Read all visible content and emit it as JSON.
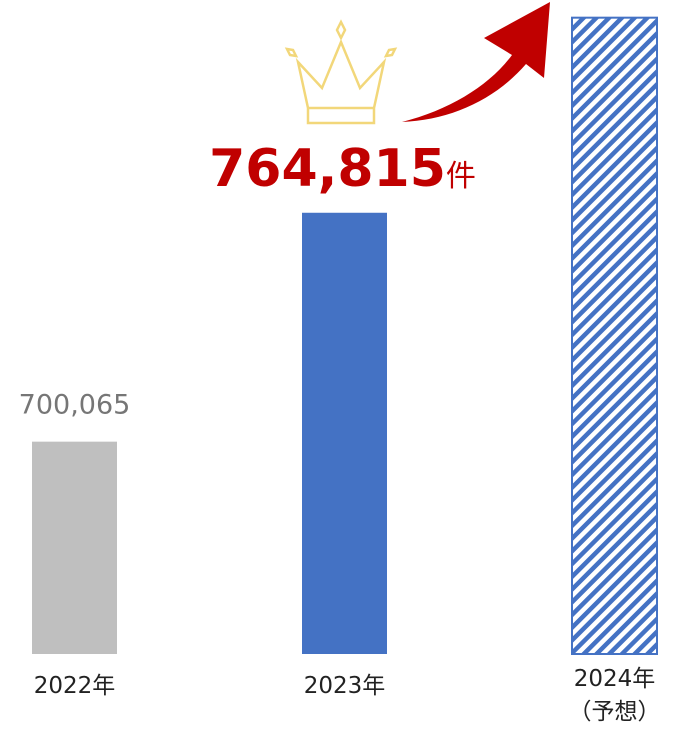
{
  "chart_data": {
    "type": "bar",
    "categories": [
      "2022年",
      "2023年",
      "2024年\n（予想）"
    ],
    "values": [
      700065,
      764815,
      820000
    ],
    "value_labels": [
      "700,065",
      "764,815",
      null
    ],
    "unit_label": "件",
    "colors": [
      "#bfbfbf",
      "#4472c4",
      "#4472c4"
    ],
    "patterns": [
      "solid",
      "solid",
      "hatch"
    ],
    "label_colors": [
      "#767676",
      "#c00000",
      null
    ],
    "ylim": [
      640000,
      825000
    ]
  }
}
